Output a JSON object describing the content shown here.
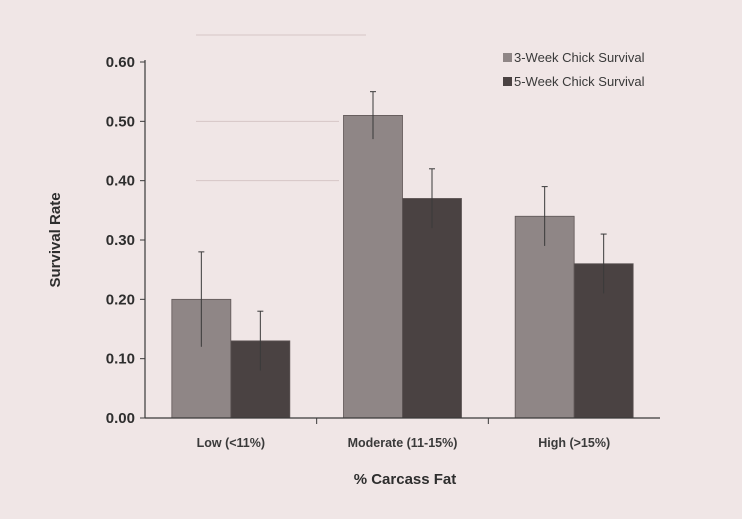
{
  "chart_data": {
    "type": "bar",
    "title": "",
    "xlabel": "% Carcass Fat",
    "ylabel": "Survival Rate",
    "categories": [
      "Low (<11%)",
      "Moderate (11-15%)",
      "High (>15%)"
    ],
    "series": [
      {
        "name": "3-Week Chick Survival",
        "values": [
          0.2,
          0.51,
          0.34
        ],
        "error": [
          0.08,
          0.04,
          0.05
        ],
        "color": "#8f8686"
      },
      {
        "name": "5-Week Chick Survival",
        "values": [
          0.13,
          0.37,
          0.26
        ],
        "error": [
          0.05,
          0.05,
          0.05
        ],
        "color": "#4a4242"
      }
    ],
    "ylim": [
      0,
      0.6
    ],
    "yticks": [
      "0.00",
      "0.10",
      "0.20",
      "0.30",
      "0.40",
      "0.50",
      "0.60"
    ],
    "grid": false,
    "legend_position": "top-right"
  },
  "colors": {
    "background": "#f0e6e6",
    "axis": "#3a3a3a",
    "error_bar": "#3a3a3a"
  }
}
